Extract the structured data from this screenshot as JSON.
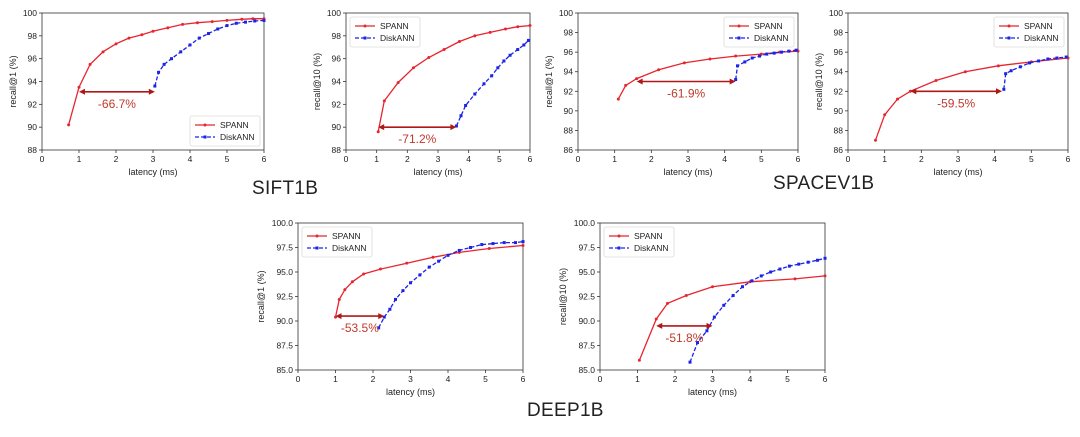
{
  "colors": {
    "spann": "#e8252e",
    "diskann": "#1b24e6",
    "arrow": "#b01818",
    "annotation": "#c0392b"
  },
  "dataset_labels": {
    "sift": "SIFT1B",
    "spacev": "SPACEV1B",
    "deep": "DEEP1B"
  },
  "chart_data": [
    {
      "id": "sift-r1",
      "type": "line",
      "xlabel": "latency (ms)",
      "ylabel": "recall@1 (%)",
      "xlim": [
        0,
        6
      ],
      "ylim": [
        88,
        100
      ],
      "xticks": [
        0,
        1,
        2,
        3,
        4,
        5,
        6
      ],
      "yticks": [
        88,
        90,
        92,
        94,
        96,
        98,
        100
      ],
      "legend": "bottom-right",
      "annotation": "-66.7%",
      "arrow": {
        "y": 93.1,
        "x1": 1.0,
        "x2": 3.05
      },
      "series": [
        {
          "name": "SPANN",
          "x": [
            0.72,
            1.0,
            1.3,
            1.65,
            2.0,
            2.35,
            2.7,
            3.0,
            3.4,
            3.8,
            4.2,
            4.6,
            5.0,
            5.4,
            5.7,
            6.0
          ],
          "y": [
            90.2,
            93.5,
            95.5,
            96.6,
            97.3,
            97.8,
            98.1,
            98.4,
            98.7,
            99.0,
            99.15,
            99.25,
            99.35,
            99.45,
            99.5,
            99.5
          ]
        },
        {
          "name": "DiskANN",
          "x": [
            3.05,
            3.15,
            3.3,
            3.5,
            3.75,
            4.0,
            4.25,
            4.5,
            4.75,
            5.0,
            5.25,
            5.5,
            5.75,
            6.0
          ],
          "y": [
            93.6,
            94.8,
            95.5,
            96.0,
            96.6,
            97.2,
            97.8,
            98.2,
            98.6,
            98.9,
            99.1,
            99.2,
            99.3,
            99.35
          ]
        }
      ]
    },
    {
      "id": "sift-r10",
      "type": "line",
      "xlabel": "latency (ms)",
      "ylabel": "recall@10 (%)",
      "xlim": [
        0,
        6
      ],
      "ylim": [
        88,
        100
      ],
      "xticks": [
        0,
        1,
        2,
        3,
        4,
        5,
        6
      ],
      "yticks": [
        88,
        90,
        92,
        94,
        96,
        98,
        100
      ],
      "legend": "top-left",
      "annotation": "-71.2%",
      "arrow": {
        "y": 90.0,
        "x1": 1.05,
        "x2": 3.6
      },
      "series": [
        {
          "name": "SPANN",
          "x": [
            1.05,
            1.25,
            1.7,
            2.2,
            2.7,
            3.2,
            3.7,
            4.2,
            4.7,
            5.2,
            5.6,
            6.0
          ],
          "y": [
            89.6,
            92.3,
            93.9,
            95.2,
            96.1,
            96.8,
            97.5,
            98.0,
            98.3,
            98.6,
            98.8,
            98.9
          ]
        },
        {
          "name": "DiskANN",
          "x": [
            3.6,
            3.75,
            3.9,
            4.2,
            4.5,
            4.75,
            4.95,
            5.15,
            5.35,
            5.6,
            5.8,
            5.95
          ],
          "y": [
            90.1,
            91.0,
            91.9,
            92.9,
            93.8,
            94.5,
            95.2,
            95.8,
            96.3,
            96.8,
            97.2,
            97.6
          ]
        }
      ]
    },
    {
      "id": "spacev-r1",
      "type": "line",
      "xlabel": "latency (ms)",
      "ylabel": "recall@1 (%)",
      "xlim": [
        0,
        6
      ],
      "ylim": [
        86,
        100
      ],
      "xticks": [
        0,
        1,
        2,
        3,
        4,
        5,
        6
      ],
      "yticks": [
        86,
        88,
        90,
        92,
        94,
        96,
        98,
        100
      ],
      "legend": "top-right",
      "annotation": "-61.9%",
      "arrow": {
        "y": 93.0,
        "x1": 1.6,
        "x2": 4.3
      },
      "series": [
        {
          "name": "SPANN",
          "x": [
            1.1,
            1.3,
            1.6,
            2.2,
            2.9,
            3.6,
            4.3,
            5.0,
            5.5,
            6.0
          ],
          "y": [
            91.2,
            92.6,
            93.3,
            94.2,
            94.9,
            95.3,
            95.6,
            95.8,
            96.0,
            96.1
          ]
        },
        {
          "name": "DiskANN",
          "x": [
            4.3,
            4.35,
            4.55,
            4.75,
            4.95,
            5.15,
            5.35,
            5.55,
            5.75,
            5.95
          ],
          "y": [
            93.2,
            94.6,
            95.0,
            95.4,
            95.6,
            95.8,
            95.9,
            96.0,
            96.1,
            96.2
          ]
        }
      ]
    },
    {
      "id": "spacev-r10",
      "type": "line",
      "xlabel": "latency (ms)",
      "ylabel": "recall@10 (%)",
      "xlim": [
        0,
        6
      ],
      "ylim": [
        86,
        100
      ],
      "xticks": [
        0,
        1,
        2,
        3,
        4,
        5,
        6
      ],
      "yticks": [
        86,
        88,
        90,
        92,
        94,
        96,
        98,
        100
      ],
      "legend": "top-right",
      "annotation": "-59.5%",
      "arrow": {
        "y": 92.0,
        "x1": 1.7,
        "x2": 4.2
      },
      "series": [
        {
          "name": "SPANN",
          "x": [
            0.75,
            1.0,
            1.35,
            1.7,
            2.4,
            3.2,
            4.1,
            5.0,
            6.0
          ],
          "y": [
            87.0,
            89.6,
            91.2,
            92.0,
            93.1,
            94.0,
            94.6,
            95.0,
            95.4
          ]
        },
        {
          "name": "DiskANN",
          "x": [
            4.25,
            4.3,
            4.45,
            4.7,
            4.95,
            5.2,
            5.45,
            5.7,
            5.95
          ],
          "y": [
            92.2,
            93.8,
            94.1,
            94.5,
            94.9,
            95.1,
            95.3,
            95.4,
            95.5
          ]
        }
      ]
    },
    {
      "id": "deep-r1",
      "type": "line",
      "xlabel": "latency (ms)",
      "ylabel": "recall@1 (%)",
      "xlim": [
        0,
        6
      ],
      "ylim": [
        85,
        100
      ],
      "xticks": [
        0,
        1,
        2,
        3,
        4,
        5,
        6
      ],
      "yticks": [
        "85.0",
        "87.5",
        "90.0",
        "92.5",
        "95.0",
        "97.5",
        "100.0"
      ],
      "legend": "top-left",
      "annotation": "-53.5%",
      "arrow": {
        "y": 90.5,
        "x1": 1.0,
        "x2": 2.3
      },
      "series": [
        {
          "name": "SPANN",
          "x": [
            1.0,
            1.1,
            1.25,
            1.45,
            1.75,
            2.2,
            2.9,
            3.6,
            4.3,
            5.1,
            6.0
          ],
          "y": [
            90.4,
            92.2,
            93.2,
            94.0,
            94.8,
            95.3,
            95.9,
            96.5,
            97.0,
            97.4,
            97.7
          ]
        },
        {
          "name": "DiskANN",
          "x": [
            2.15,
            2.3,
            2.45,
            2.6,
            2.8,
            3.0,
            3.25,
            3.5,
            3.75,
            4.0,
            4.3,
            4.6,
            4.9,
            5.2,
            5.5,
            5.8,
            6.0
          ],
          "y": [
            89.3,
            90.4,
            91.2,
            92.2,
            93.1,
            93.9,
            94.7,
            95.5,
            96.1,
            96.7,
            97.2,
            97.5,
            97.8,
            97.9,
            98.0,
            98.0,
            98.1
          ]
        }
      ]
    },
    {
      "id": "deep-r10",
      "type": "line",
      "xlabel": "latency (ms)",
      "ylabel": "recall@10 (%)",
      "xlim": [
        0,
        6
      ],
      "ylim": [
        85,
        100
      ],
      "xticks": [
        0,
        1,
        2,
        3,
        4,
        5,
        6
      ],
      "yticks": [
        "85.0",
        "87.5",
        "90.0",
        "92.5",
        "95.0",
        "97.5",
        "100.0"
      ],
      "legend": "top-left",
      "annotation": "-51.8%",
      "arrow": {
        "y": 89.5,
        "x1": 1.5,
        "x2": 3.0
      },
      "series": [
        {
          "name": "SPANN",
          "x": [
            1.05,
            1.5,
            1.8,
            2.3,
            3.0,
            4.0,
            5.2,
            6.0
          ],
          "y": [
            86.0,
            90.2,
            91.8,
            92.6,
            93.5,
            94.0,
            94.3,
            94.6
          ]
        },
        {
          "name": "DiskANN",
          "x": [
            2.4,
            2.6,
            2.85,
            3.05,
            3.3,
            3.55,
            3.8,
            4.05,
            4.3,
            4.55,
            4.8,
            5.05,
            5.3,
            5.55,
            5.8,
            6.0
          ],
          "y": [
            85.8,
            87.8,
            89.0,
            90.4,
            91.6,
            92.6,
            93.5,
            94.1,
            94.6,
            95.0,
            95.3,
            95.6,
            95.8,
            96.0,
            96.2,
            96.4
          ]
        }
      ]
    }
  ]
}
